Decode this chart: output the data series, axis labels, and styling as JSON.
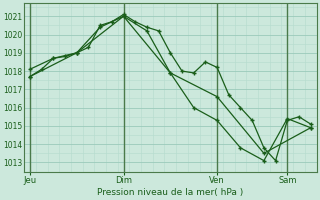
{
  "bg_color": "#cce8dc",
  "grid_color_minor": "#b8ddd0",
  "grid_color_major": "#9acaba",
  "line_color": "#1a5e1a",
  "marker_color": "#1a5e1a",
  "vline_color": "#4a7a4a",
  "title": "Pression niveau de la mer( hPa )",
  "xlabel_ticks": [
    "Jeu",
    "Dim",
    "Ven",
    "Sam"
  ],
  "xlabel_tick_positions": [
    0.0,
    8.0,
    16.0,
    22.0
  ],
  "ylim": [
    1012.5,
    1021.7
  ],
  "yticks": [
    1013,
    1014,
    1015,
    1016,
    1017,
    1018,
    1019,
    1020,
    1021
  ],
  "series1_x": [
    0,
    1,
    2,
    3,
    4,
    5,
    6,
    7,
    8,
    9,
    10,
    11,
    12,
    13,
    14,
    15,
    16,
    17,
    18,
    19,
    20,
    21,
    22,
    23,
    24
  ],
  "series1_y": [
    1017.7,
    1018.1,
    1018.7,
    1018.8,
    1019.0,
    1019.3,
    1020.5,
    1020.7,
    1021.1,
    1020.7,
    1020.4,
    1020.2,
    1019.0,
    1018.0,
    1017.9,
    1018.5,
    1018.2,
    1016.7,
    1016.0,
    1015.3,
    1013.8,
    1013.1,
    1015.3,
    1015.5,
    1015.1
  ],
  "series2_x": [
    0,
    2,
    4,
    6,
    8,
    10,
    12,
    14,
    16,
    18,
    20,
    22,
    24
  ],
  "series2_y": [
    1018.1,
    1018.7,
    1019.0,
    1020.4,
    1021.0,
    1020.2,
    1017.9,
    1016.0,
    1015.3,
    1013.8,
    1013.1,
    1015.4,
    1014.9
  ],
  "series3_x": [
    0,
    4,
    8,
    12,
    16,
    20,
    24
  ],
  "series3_y": [
    1017.7,
    1019.0,
    1021.0,
    1017.9,
    1016.6,
    1013.5,
    1014.9
  ],
  "vline_positions": [
    0,
    8,
    16,
    22
  ],
  "xlim": [
    -0.5,
    24.5
  ],
  "figsize": [
    3.2,
    2.0
  ],
  "dpi": 100
}
